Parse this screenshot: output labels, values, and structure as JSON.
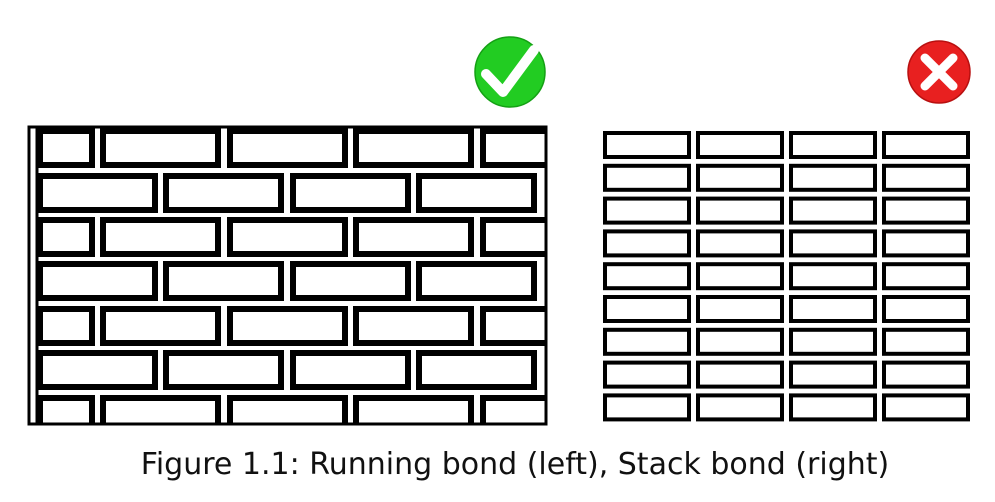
{
  "figure": {
    "caption": "Figure 1.1: Running bond (left), Stack bond (right)"
  },
  "panels": {
    "running_bond": {
      "verdict": "check-icon",
      "verdict_color": "#22cc22"
    },
    "stack_bond": {
      "verdict": "cross-icon",
      "verdict_color": "#e82020"
    }
  },
  "colors": {
    "stroke": "#000000",
    "brick_fill": "#ffffff"
  }
}
